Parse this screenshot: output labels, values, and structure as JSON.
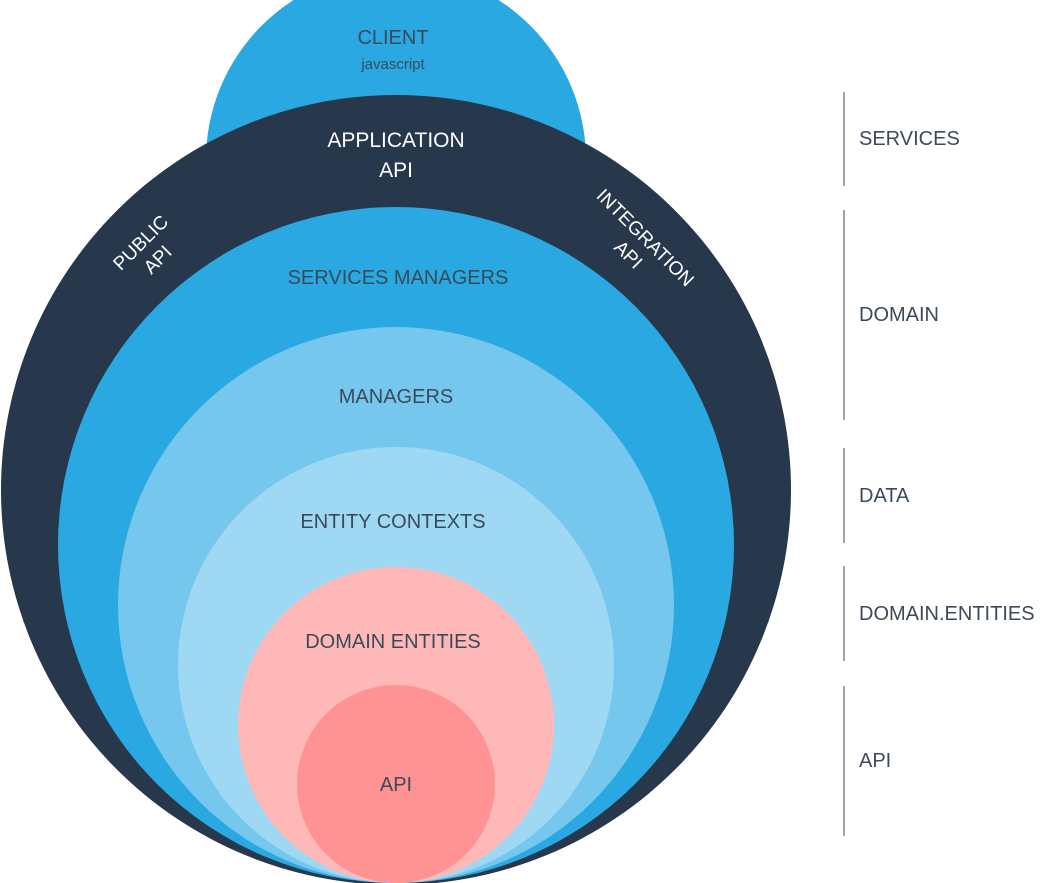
{
  "diagram": {
    "client": {
      "title": "CLIENT",
      "subtitle": "javascript"
    },
    "application_api": {
      "line1": "APPLICATION",
      "line2": "API"
    },
    "public_api": {
      "line1": "PUBLIC",
      "line2": "API"
    },
    "integration_api": {
      "line1": "INTEGRATION",
      "line2": "API"
    },
    "services_managers": "SERVICES MANAGERS",
    "managers": "MANAGERS",
    "entity_contexts": "ENTITY CONTEXTS",
    "domain_entities": "DOMAIN ENTITIES",
    "api_core": "API"
  },
  "layers": [
    {
      "label": "SERVICES"
    },
    {
      "label": "DOMAIN"
    },
    {
      "label": "DATA"
    },
    {
      "label": "DOMAIN.ENTITIES"
    },
    {
      "label": "API"
    }
  ],
  "colors": {
    "client": "#29a8e2",
    "outer_ring": "#27374c",
    "services_managers": "#29a8e2",
    "managers": "#76c7ee",
    "entity_contexts": "#9ed8f3",
    "domain_entities": "#ffb8b8",
    "api_core": "#ff9292"
  }
}
